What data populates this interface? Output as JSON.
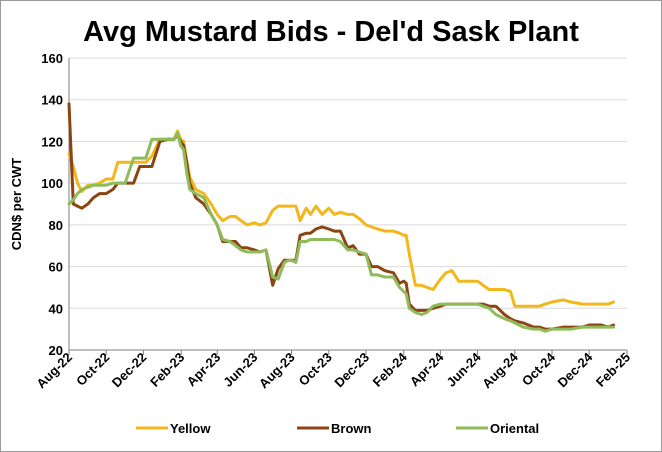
{
  "chart_data": {
    "type": "line",
    "title": "Avg Mustard Bids - Del'd Sask Plant",
    "ylabel": "CDN$ per CWT",
    "xlabel": "",
    "ylim": [
      20,
      160
    ],
    "yticks": [
      20,
      40,
      60,
      80,
      100,
      120,
      140,
      160
    ],
    "xlim": [
      "2022-08-01",
      "2025-02-01"
    ],
    "xtick_labels": [
      "Aug-22",
      "Oct-22",
      "Dec-22",
      "Feb-23",
      "Apr-23",
      "Jun-23",
      "Aug-23",
      "Oct-23",
      "Dec-23",
      "Feb-24",
      "Apr-24",
      "Jun-24",
      "Aug-24",
      "Oct-24",
      "Dec-24",
      "Feb-25"
    ],
    "xtick_dates": [
      "2022-08-01",
      "2022-10-01",
      "2022-12-01",
      "2023-02-01",
      "2023-04-01",
      "2023-06-01",
      "2023-08-01",
      "2023-10-01",
      "2023-12-01",
      "2024-02-01",
      "2024-04-01",
      "2024-06-01",
      "2024-08-01",
      "2024-10-01",
      "2024-12-01",
      "2025-02-01"
    ],
    "grid": {
      "horizontal": true,
      "vertical": false
    },
    "legend": "bottom",
    "colors": {
      "Yellow": "#f2b71a",
      "Brown": "#8b4513",
      "Oriental": "#8fbc5a",
      "grid": "#d9d9d9",
      "axis": "#7f7f7f",
      "text": "#000000"
    },
    "series": [
      {
        "name": "Yellow",
        "x": [
          "2022-08-01",
          "2022-08-08",
          "2022-08-15",
          "2022-08-22",
          "2022-09-01",
          "2022-09-10",
          "2022-09-20",
          "2022-10-01",
          "2022-10-12",
          "2022-10-20",
          "2022-11-01",
          "2022-11-15",
          "2022-11-25",
          "2022-12-05",
          "2022-12-15",
          "2022-12-28",
          "2023-01-10",
          "2023-01-20",
          "2023-01-26",
          "2023-01-31",
          "2023-02-05",
          "2023-02-10",
          "2023-02-15",
          "2023-02-25",
          "2023-03-10",
          "2023-03-22",
          "2023-04-01",
          "2023-04-10",
          "2023-04-22",
          "2023-05-01",
          "2023-05-10",
          "2023-05-20",
          "2023-06-01",
          "2023-06-10",
          "2023-06-20",
          "2023-07-01",
          "2023-07-10",
          "2023-07-20",
          "2023-07-27",
          "2023-08-01",
          "2023-08-08",
          "2023-08-15",
          "2023-08-25",
          "2023-09-01",
          "2023-09-10",
          "2023-09-20",
          "2023-10-01",
          "2023-10-10",
          "2023-10-20",
          "2023-11-01",
          "2023-11-10",
          "2023-11-20",
          "2023-12-01",
          "2023-12-10",
          "2023-12-20",
          "2024-01-01",
          "2024-01-15",
          "2024-01-25",
          "2024-02-01",
          "2024-02-05",
          "2024-02-10",
          "2024-02-20",
          "2024-03-01",
          "2024-03-10",
          "2024-03-20",
          "2024-04-01",
          "2024-04-10",
          "2024-04-20",
          "2024-05-01",
          "2024-05-15",
          "2024-06-01",
          "2024-06-10",
          "2024-06-20",
          "2024-07-01",
          "2024-07-15",
          "2024-07-25",
          "2024-08-01",
          "2024-08-15",
          "2024-09-01",
          "2024-09-10",
          "2024-09-20",
          "2024-10-01",
          "2024-10-20",
          "2024-11-01",
          "2024-11-20",
          "2024-12-01",
          "2024-12-20",
          "2025-01-01",
          "2025-01-10"
        ],
        "values": [
          114,
          108,
          100,
          96,
          99,
          99,
          100,
          102,
          102,
          110,
          110,
          110,
          110,
          110,
          113,
          121,
          121,
          121,
          125,
          121,
          120,
          111,
          103,
          97,
          95,
          90,
          85,
          82,
          84,
          84,
          82,
          80,
          81,
          80,
          81,
          87,
          89,
          89,
          89,
          89,
          89,
          82,
          88,
          85,
          89,
          85,
          88,
          85,
          86,
          85,
          85,
          83,
          80,
          79,
          78,
          77,
          77,
          76,
          75,
          75,
          66,
          51,
          51,
          50,
          49,
          54,
          57,
          58,
          53,
          53,
          53,
          51,
          49,
          49,
          49,
          48,
          41,
          41,
          41,
          41,
          42,
          43,
          44,
          43,
          42,
          42,
          42,
          42,
          43
        ]
      },
      {
        "name": "Brown",
        "x": [
          "2022-08-01",
          "2022-08-08",
          "2022-08-15",
          "2022-08-22",
          "2022-09-01",
          "2022-09-10",
          "2022-09-20",
          "2022-10-01",
          "2022-10-12",
          "2022-10-20",
          "2022-11-01",
          "2022-11-15",
          "2022-11-25",
          "2022-12-05",
          "2022-12-15",
          "2022-12-28",
          "2023-01-10",
          "2023-01-20",
          "2023-01-26",
          "2023-01-31",
          "2023-02-05",
          "2023-02-10",
          "2023-02-15",
          "2023-02-25",
          "2023-03-10",
          "2023-03-22",
          "2023-04-01",
          "2023-04-10",
          "2023-04-22",
          "2023-05-01",
          "2023-05-10",
          "2023-05-20",
          "2023-06-01",
          "2023-06-10",
          "2023-06-20",
          "2023-07-01",
          "2023-07-10",
          "2023-07-20",
          "2023-07-27",
          "2023-08-01",
          "2023-08-08",
          "2023-08-15",
          "2023-08-25",
          "2023-09-01",
          "2023-09-10",
          "2023-09-20",
          "2023-10-01",
          "2023-10-10",
          "2023-10-20",
          "2023-11-01",
          "2023-11-10",
          "2023-11-20",
          "2023-12-01",
          "2023-12-10",
          "2023-12-20",
          "2024-01-01",
          "2024-01-15",
          "2024-01-25",
          "2024-02-01",
          "2024-02-05",
          "2024-02-10",
          "2024-02-20",
          "2024-03-01",
          "2024-03-10",
          "2024-03-20",
          "2024-04-01",
          "2024-04-10",
          "2024-04-20",
          "2024-05-01",
          "2024-05-15",
          "2024-06-01",
          "2024-06-10",
          "2024-06-20",
          "2024-07-01",
          "2024-07-15",
          "2024-07-25",
          "2024-08-01",
          "2024-08-15",
          "2024-09-01",
          "2024-09-10",
          "2024-09-20",
          "2024-10-01",
          "2024-10-20",
          "2024-11-01",
          "2024-11-20",
          "2024-12-01",
          "2024-12-20",
          "2025-01-01",
          "2025-01-10"
        ],
        "values": [
          138,
          90,
          89,
          88,
          90,
          93,
          95,
          95,
          97,
          100,
          100,
          100,
          108,
          108,
          108,
          120,
          121,
          121,
          123,
          120,
          118,
          110,
          100,
          93,
          90,
          85,
          80,
          72,
          72,
          72,
          69,
          69,
          68,
          67,
          68,
          51,
          59,
          63,
          63,
          63,
          63,
          75,
          76,
          76,
          78,
          79,
          78,
          77,
          77,
          69,
          70,
          66,
          66,
          60,
          60,
          58,
          57,
          52,
          53,
          52,
          42,
          39,
          39,
          39,
          40,
          41,
          42,
          42,
          42,
          42,
          42,
          42,
          41,
          41,
          37,
          35,
          34,
          33,
          31,
          31,
          30,
          30,
          31,
          31,
          31,
          32,
          32,
          31,
          32
        ]
      },
      {
        "name": "Oriental",
        "x": [
          "2022-08-01",
          "2022-08-08",
          "2022-08-15",
          "2022-08-22",
          "2022-09-01",
          "2022-09-10",
          "2022-09-20",
          "2022-10-01",
          "2022-10-12",
          "2022-10-20",
          "2022-11-01",
          "2022-11-15",
          "2022-11-25",
          "2022-12-05",
          "2022-12-15",
          "2022-12-28",
          "2023-01-10",
          "2023-01-20",
          "2023-01-26",
          "2023-01-31",
          "2023-02-05",
          "2023-02-10",
          "2023-02-15",
          "2023-02-25",
          "2023-03-10",
          "2023-03-22",
          "2023-04-01",
          "2023-04-10",
          "2023-04-22",
          "2023-05-01",
          "2023-05-10",
          "2023-05-20",
          "2023-06-01",
          "2023-06-10",
          "2023-06-20",
          "2023-07-01",
          "2023-07-10",
          "2023-07-20",
          "2023-07-27",
          "2023-08-01",
          "2023-08-08",
          "2023-08-15",
          "2023-08-25",
          "2023-09-01",
          "2023-09-10",
          "2023-09-20",
          "2023-10-01",
          "2023-10-10",
          "2023-10-20",
          "2023-11-01",
          "2023-11-10",
          "2023-11-20",
          "2023-12-01",
          "2023-12-10",
          "2023-12-20",
          "2024-01-01",
          "2024-01-15",
          "2024-01-25",
          "2024-02-01",
          "2024-02-05",
          "2024-02-10",
          "2024-02-20",
          "2024-03-01",
          "2024-03-10",
          "2024-03-20",
          "2024-04-01",
          "2024-04-10",
          "2024-04-20",
          "2024-05-01",
          "2024-05-15",
          "2024-06-01",
          "2024-06-10",
          "2024-06-20",
          "2024-07-01",
          "2024-07-15",
          "2024-07-25",
          "2024-08-01",
          "2024-08-15",
          "2024-09-01",
          "2024-09-10",
          "2024-09-20",
          "2024-10-01",
          "2024-10-20",
          "2024-11-01",
          "2024-11-20",
          "2024-12-01",
          "2024-12-20",
          "2025-01-01",
          "2025-01-10"
        ],
        "values": [
          90,
          92,
          95,
          97,
          98,
          99,
          99,
          99,
          100,
          100,
          100,
          112,
          112,
          112,
          121,
          121,
          121,
          121,
          124,
          118,
          116,
          105,
          97,
          95,
          93,
          85,
          80,
          73,
          72,
          70,
          68,
          67,
          67,
          67,
          68,
          55,
          54,
          62,
          63,
          63,
          62,
          72,
          72,
          73,
          73,
          73,
          73,
          73,
          72,
          68,
          68,
          67,
          66,
          56,
          56,
          55,
          55,
          50,
          48,
          47,
          40,
          38,
          37,
          38,
          41,
          42,
          42,
          42,
          42,
          42,
          42,
          41,
          40,
          37,
          35,
          34,
          33,
          31,
          30,
          30,
          29,
          30,
          30,
          30,
          31,
          31,
          31,
          31,
          31
        ]
      }
    ]
  }
}
